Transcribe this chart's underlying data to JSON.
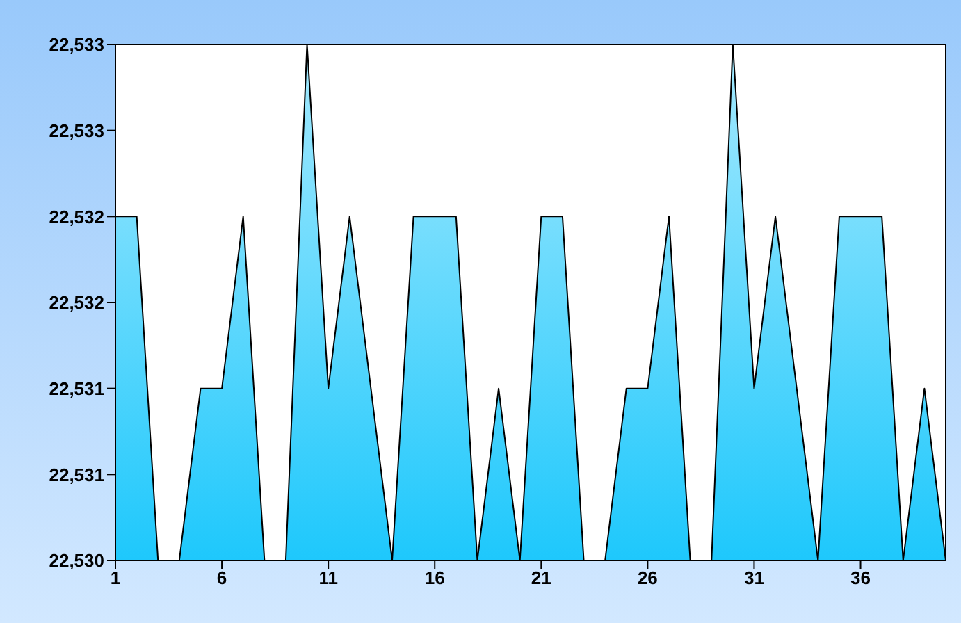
{
  "chart_data": {
    "type": "area",
    "x": [
      1,
      2,
      3,
      4,
      5,
      6,
      7,
      8,
      9,
      10,
      11,
      12,
      13,
      14,
      15,
      16,
      17,
      18,
      19,
      20,
      21,
      22,
      23,
      24,
      25,
      26,
      27,
      28,
      29,
      30,
      31,
      32,
      33,
      34,
      35,
      36,
      37,
      38,
      39,
      40
    ],
    "series": [
      {
        "color": "#1ec8fc",
        "values": [
          22532,
          22532,
          22530,
          22530,
          22531,
          22531,
          22532,
          22530,
          22530,
          22533,
          22531,
          22532,
          22531,
          22530,
          22532,
          22532,
          22532,
          22530,
          22531,
          22530,
          22532,
          22532,
          22530,
          22530,
          22531,
          22531,
          22532,
          22530,
          22530,
          22533,
          22531,
          22532,
          22531,
          22530,
          22532,
          22532,
          22532,
          22530,
          22531,
          22530
        ]
      }
    ],
    "xlim": [
      1,
      40
    ],
    "xticks": [
      1,
      6,
      11,
      16,
      21,
      26,
      31,
      36
    ],
    "ylim": [
      22530,
      22533
    ],
    "yticks": [
      {
        "value": 22530,
        "label": "22,530"
      },
      {
        "value": 22530.5,
        "label": "22,531"
      },
      {
        "value": 22531,
        "label": "22,531"
      },
      {
        "value": 22531.5,
        "label": "22,532"
      },
      {
        "value": 22532,
        "label": "22,532"
      },
      {
        "value": 22532.5,
        "label": "22,533"
      },
      {
        "value": 22533,
        "label": "22,533"
      }
    ],
    "legend": false,
    "marker": "none",
    "line_style": "solid"
  }
}
